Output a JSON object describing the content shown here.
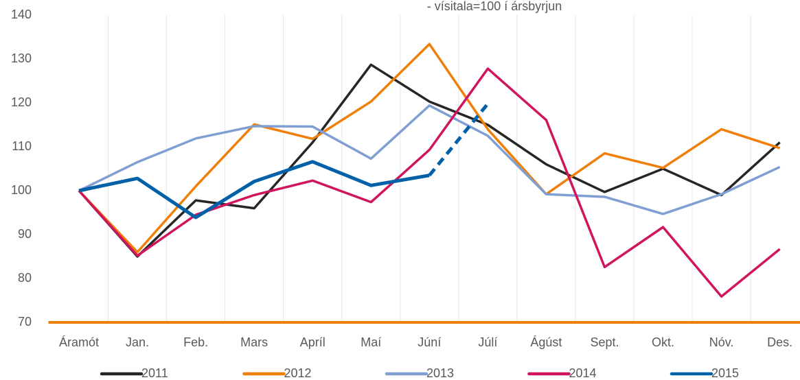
{
  "chart_data": {
    "type": "line",
    "subtitle": "- vísitala=100 í ársbyrjun",
    "categories": [
      "Áramót",
      "Jan.",
      "Feb.",
      "Mars",
      "Apríl",
      "Maí",
      "Júní",
      "Júlí",
      "Ágúst",
      "Sept.",
      "Okt.",
      "Nóv.",
      "Des."
    ],
    "series": [
      {
        "name": "2011",
        "color": "#262626",
        "values": [
          100,
          85,
          97.8,
          96,
          111,
          128.7,
          120.3,
          115,
          106,
          99.7,
          105,
          99,
          111
        ]
      },
      {
        "name": "2012",
        "color": "#f07f09",
        "values": [
          100,
          86,
          101,
          115.1,
          111.8,
          120.3,
          133.4,
          114,
          99.2,
          108.5,
          105.2,
          114,
          109.7
        ]
      },
      {
        "name": "2013",
        "color": "#7f9fd3",
        "values": [
          100,
          106.5,
          111.9,
          114.7,
          114.6,
          107.3,
          119.4,
          112.5,
          99.2,
          98.6,
          94.7,
          99.2,
          105.4
        ]
      },
      {
        "name": "2014",
        "color": "#d0145d",
        "values": [
          100,
          85.2,
          94.5,
          99,
          102.3,
          97.4,
          109.3,
          127.8,
          116.1,
          82.6,
          91.7,
          75.9,
          86.7
        ]
      },
      {
        "name": "2015",
        "color": "#0060a8",
        "width": 5,
        "dashed_from": 6,
        "values": [
          100,
          102.8,
          93.9,
          102.1,
          106.6,
          101.2,
          103.5,
          119.8,
          null,
          null,
          null,
          null,
          null
        ]
      }
    ],
    "ylim": [
      70,
      140
    ],
    "yticks": [
      70,
      80,
      90,
      100,
      110,
      120,
      130,
      140
    ],
    "grid": "x",
    "axis_color": "#f07f09",
    "legend": "bottom"
  }
}
